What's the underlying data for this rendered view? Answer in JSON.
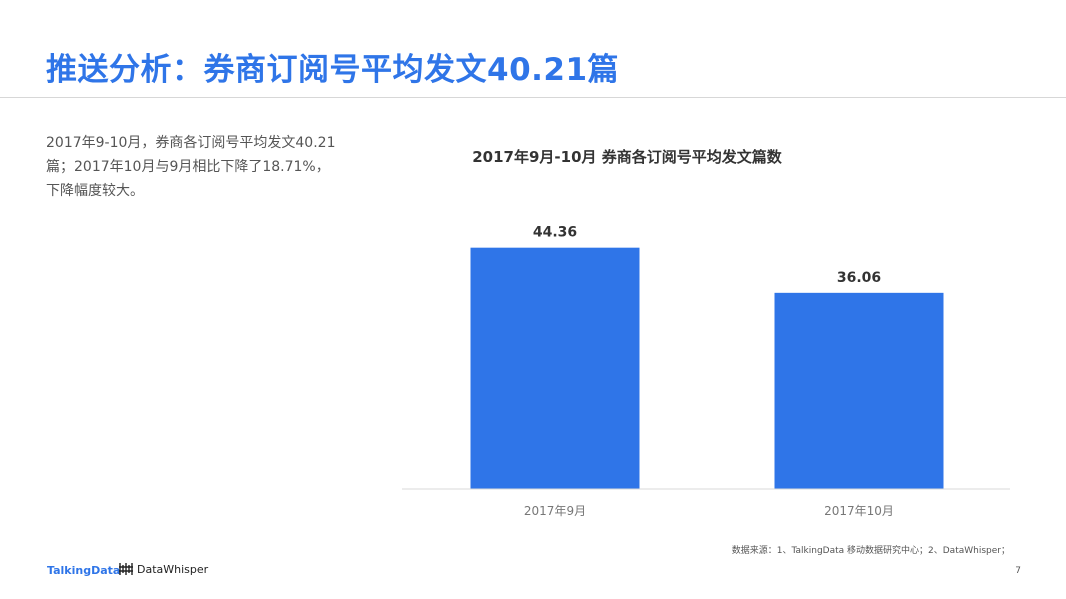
{
  "header": {
    "title": "推送分析：券商订阅号平均发文40.21篇"
  },
  "description": {
    "lines": [
      "2017年9-10月，券商各订阅号平均发文40.21",
      "篇；2017年10月与9月相比下降了18.71%，",
      "下降幅度较大。"
    ]
  },
  "chart_data": {
    "type": "bar",
    "title": "2017年9月-10月 券商各订阅号平均发文篇数",
    "categories": [
      "2017年9月",
      "2017年10月"
    ],
    "values": [
      44.36,
      36.06
    ],
    "value_labels": [
      "44.36",
      "36.06"
    ],
    "xlabel": "",
    "ylabel": "",
    "ylim": [
      0,
      50
    ],
    "grid": false,
    "legend": "none",
    "bar_color": "#2f75e8"
  },
  "footer": {
    "source": "数据来源：1、TalkingData 移动数据研究中心；2、DataWhisper；",
    "page_number": "7",
    "logo_talkingdata": "TalkingData",
    "logo_datawhisper": "DataWhisper"
  },
  "colors": {
    "accent": "#2f75e8",
    "text": "#555555"
  }
}
